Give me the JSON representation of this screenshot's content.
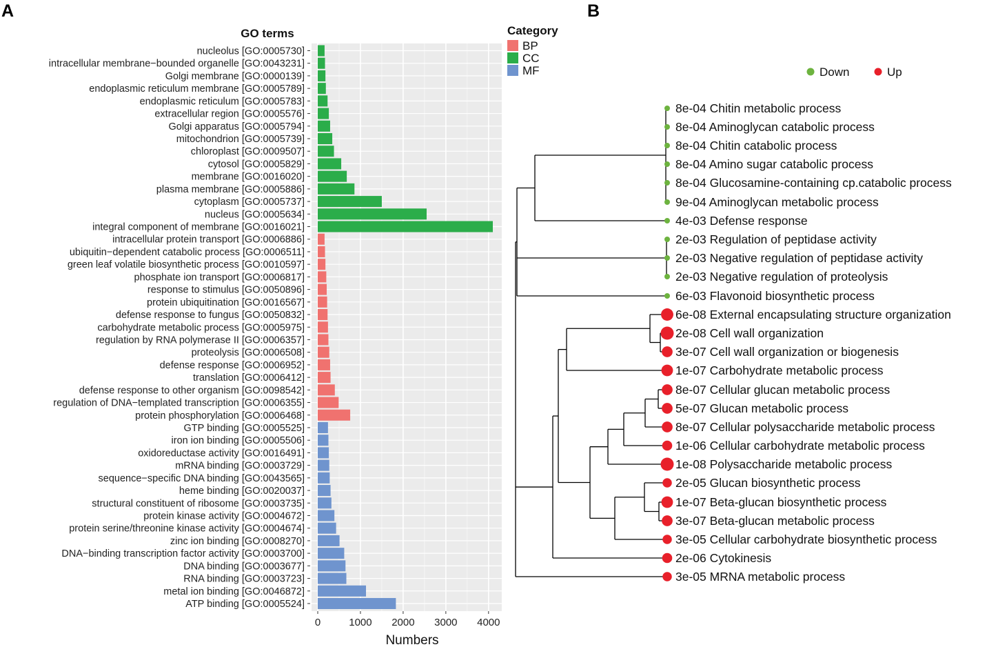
{
  "panels": {
    "a_label": "A",
    "b_label": "B"
  },
  "chart_data": [
    {
      "type": "bar",
      "orientation": "horizontal",
      "title": "GO terms",
      "xlabel": "Numbers",
      "ylabel": "",
      "xlim": [
        0,
        4200
      ],
      "xticks": [
        0,
        1000,
        2000,
        3000,
        4000
      ],
      "grid": true,
      "legend": {
        "title": "Category",
        "position": "top-right",
        "entries": [
          {
            "name": "BP",
            "color": "#F0726F"
          },
          {
            "name": "CC",
            "color": "#2BAD4A"
          },
          {
            "name": "MF",
            "color": "#6F94CE"
          }
        ]
      },
      "categories": [
        "nucleolus [GO:0005730]",
        "intracellular membrane−bounded organelle [GO:0043231]",
        "Golgi membrane [GO:0000139]",
        "endoplasmic reticulum membrane [GO:0005789]",
        "endoplasmic reticulum [GO:0005783]",
        "extracellular region [GO:0005576]",
        "Golgi apparatus [GO:0005794]",
        "mitochondrion [GO:0005739]",
        "chloroplast [GO:0009507]",
        "cytosol [GO:0005829]",
        "membrane [GO:0016020]",
        "plasma membrane [GO:0005886]",
        "cytoplasm [GO:0005737]",
        "nucleus [GO:0005634]",
        "integral component of membrane [GO:0016021]",
        "intracellular protein transport [GO:0006886]",
        "ubiquitin−dependent catabolic process [GO:0006511]",
        "green leaf volatile biosynthetic process [GO:0010597]",
        "phosphate ion transport [GO:0006817]",
        "response to stimulus [GO:0050896]",
        "protein ubiquitination [GO:0016567]",
        "defense response to fungus [GO:0050832]",
        "carbohydrate metabolic process [GO:0005975]",
        "regulation by RNA polymerase II [GO:0006357]",
        "proteolysis [GO:0006508]",
        "defense response [GO:0006952]",
        "translation [GO:0006412]",
        "defense response to other organism [GO:0098542]",
        "regulation of DNA−templated transcription [GO:0006355]",
        "protein phosphorylation [GO:0006468]",
        "GTP binding [GO:0005525]",
        "iron ion binding [GO:0005506]",
        "oxidoreductase activity [GO:0016491]",
        "mRNA binding [GO:0003729]",
        "sequence−specific DNA binding [GO:0043565]",
        "heme binding [GO:0020037]",
        "structural constituent of ribosome [GO:0003735]",
        "protein kinase activity [GO:0004672]",
        "protein serine/threonine kinase activity [GO:0004674]",
        "zinc ion binding [GO:0008270]",
        "DNA−binding transcription factor activity [GO:0003700]",
        "DNA binding [GO:0003677]",
        "RNA binding [GO:0003723]",
        "metal ion binding [GO:0046872]",
        "ATP binding [GO:0005524]"
      ],
      "values": [
        160,
        170,
        180,
        190,
        230,
        260,
        290,
        340,
        380,
        550,
        680,
        860,
        1500,
        2550,
        4100,
        160,
        170,
        180,
        200,
        210,
        220,
        230,
        240,
        250,
        270,
        290,
        300,
        400,
        490,
        760,
        240,
        250,
        260,
        270,
        280,
        300,
        320,
        390,
        430,
        510,
        620,
        650,
        670,
        1130,
        1830
      ],
      "category_groups": [
        "CC",
        "CC",
        "CC",
        "CC",
        "CC",
        "CC",
        "CC",
        "CC",
        "CC",
        "CC",
        "CC",
        "CC",
        "CC",
        "CC",
        "CC",
        "BP",
        "BP",
        "BP",
        "BP",
        "BP",
        "BP",
        "BP",
        "BP",
        "BP",
        "BP",
        "BP",
        "BP",
        "BP",
        "BP",
        "BP",
        "MF",
        "MF",
        "MF",
        "MF",
        "MF",
        "MF",
        "MF",
        "MF",
        "MF",
        "MF",
        "MF",
        "MF",
        "MF",
        "MF",
        "MF"
      ]
    },
    {
      "type": "dendrogram",
      "title": "",
      "legend": {
        "position": "top-right",
        "entries": [
          {
            "name": "Down",
            "color": "#6DB33F"
          },
          {
            "name": "Up",
            "color": "#E8202A"
          }
        ]
      },
      "leaves": [
        {
          "pvalue": "8e-04",
          "term": "Chitin metabolic process",
          "direction": "Down",
          "size": 1
        },
        {
          "pvalue": "8e-04",
          "term": "Aminoglycan catabolic process",
          "direction": "Down",
          "size": 1
        },
        {
          "pvalue": "8e-04",
          "term": "Chitin catabolic process",
          "direction": "Down",
          "size": 1
        },
        {
          "pvalue": "8e-04",
          "term": "Amino sugar catabolic process",
          "direction": "Down",
          "size": 1
        },
        {
          "pvalue": "8e-04",
          "term": "Glucosamine-containing cp.catabolic process",
          "direction": "Down",
          "size": 1
        },
        {
          "pvalue": "9e-04",
          "term": "Aminoglycan metabolic process",
          "direction": "Down",
          "size": 1
        },
        {
          "pvalue": "4e-03",
          "term": "Defense response",
          "direction": "Down",
          "size": 1
        },
        {
          "pvalue": "2e-03",
          "term": "Regulation of peptidase activity",
          "direction": "Down",
          "size": 1
        },
        {
          "pvalue": "2e-03",
          "term": "Negative regulation of peptidase activity",
          "direction": "Down",
          "size": 1
        },
        {
          "pvalue": "2e-03",
          "term": "Negative regulation of proteolysis",
          "direction": "Down",
          "size": 1
        },
        {
          "pvalue": "6e-03",
          "term": "Flavonoid biosynthetic process",
          "direction": "Down",
          "size": 1
        },
        {
          "pvalue": "6e-08",
          "term": "External encapsulating structure organization",
          "direction": "Up",
          "size": 9
        },
        {
          "pvalue": "2e-08",
          "term": "Cell wall organization",
          "direction": "Up",
          "size": 10
        },
        {
          "pvalue": "3e-07",
          "term": "Cell wall organization or biogenesis",
          "direction": "Up",
          "size": 7
        },
        {
          "pvalue": "1e-07",
          "term": "Carbohydrate metabolic process",
          "direction": "Up",
          "size": 8
        },
        {
          "pvalue": "8e-07",
          "term": "Cellular glucan metabolic process",
          "direction": "Up",
          "size": 7
        },
        {
          "pvalue": "5e-07",
          "term": "Glucan metabolic process",
          "direction": "Up",
          "size": 7
        },
        {
          "pvalue": "8e-07",
          "term": "Cellular polysaccharide metabolic process",
          "direction": "Up",
          "size": 7
        },
        {
          "pvalue": "1e-06",
          "term": "Cellular carbohydrate metabolic process",
          "direction": "Up",
          "size": 6
        },
        {
          "pvalue": "1e-08",
          "term": "Polysaccharide metabolic process",
          "direction": "Up",
          "size": 10
        },
        {
          "pvalue": "2e-05",
          "term": "Glucan biosynthetic process",
          "direction": "Up",
          "size": 5
        },
        {
          "pvalue": "1e-07",
          "term": "Beta-glucan biosynthetic process",
          "direction": "Up",
          "size": 8
        },
        {
          "pvalue": "3e-07",
          "term": "Beta-glucan metabolic process",
          "direction": "Up",
          "size": 7
        },
        {
          "pvalue": "3e-05",
          "term": "Cellular carbohydrate biosynthetic process",
          "direction": "Up",
          "size": 5
        },
        {
          "pvalue": "2e-06",
          "term": "Cytokinesis",
          "direction": "Up",
          "size": 6
        },
        {
          "pvalue": "3e-05",
          "term": "MRNA metabolic process",
          "direction": "Up",
          "size": 5
        }
      ]
    }
  ]
}
